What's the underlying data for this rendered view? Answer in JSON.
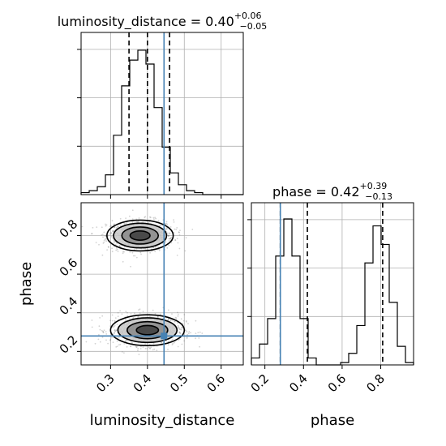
{
  "chart_data": [
    {
      "type": "histogram",
      "panel": "luminosity_distance-marginal",
      "title": "luminosity_distance = 0.40",
      "title_sup": "+0.06",
      "title_sub": "−0.05",
      "x_range": [
        0.22,
        0.66
      ],
      "bin_edges": [
        0.22,
        0.242,
        0.264,
        0.286,
        0.308,
        0.33,
        0.352,
        0.374,
        0.396,
        0.418,
        0.44,
        0.462,
        0.484,
        0.506,
        0.528,
        0.55,
        0.572,
        0.594,
        0.616,
        0.638,
        0.66
      ],
      "counts": [
        1,
        2,
        4,
        10,
        30,
        55,
        68,
        73,
        66,
        44,
        24,
        11,
        5,
        2,
        1,
        0,
        0,
        0,
        0,
        0
      ],
      "ymax": 82,
      "quantiles": [
        0.35,
        0.4,
        0.46
      ],
      "truth": 0.445
    },
    {
      "type": "histogram",
      "panel": "phase-marginal",
      "title": "phase = 0.42",
      "title_sup": "+0.39",
      "title_sub": "−0.13",
      "x_range": [
        0.13,
        0.97
      ],
      "bin_edges": [
        0.13,
        0.172,
        0.214,
        0.256,
        0.298,
        0.34,
        0.382,
        0.424,
        0.466,
        0.508,
        0.55,
        0.592,
        0.634,
        0.676,
        0.718,
        0.76,
        0.802,
        0.844,
        0.886,
        0.928,
        0.97
      ],
      "counts": [
        3,
        9,
        20,
        47,
        63,
        47,
        20,
        3,
        0,
        0,
        0,
        1,
        5,
        17,
        44,
        60,
        52,
        27,
        8,
        1
      ],
      "ymax": 70,
      "quantiles": [
        0.28,
        0.42,
        0.81
      ],
      "truth": 0.28,
      "xticks": [
        "0.2",
        "0.4",
        "0.6",
        "0.8"
      ],
      "xlabel": "phase"
    },
    {
      "type": "scatter",
      "panel": "luminosity_distance-vs-phase",
      "x_range": [
        0.22,
        0.66
      ],
      "y_range": [
        0.13,
        0.97
      ],
      "xticks": [
        "0.3",
        "0.4",
        "0.5",
        "0.6"
      ],
      "yticks": [
        "0.2",
        "0.4",
        "0.6",
        "0.8"
      ],
      "xlabel": "luminosity_distance",
      "ylabel": "phase",
      "modes": [
        {
          "x": 0.38,
          "y": 0.8,
          "sx": 0.045,
          "sy": 0.04
        },
        {
          "x": 0.4,
          "y": 0.31,
          "sx": 0.05,
          "sy": 0.04
        }
      ],
      "contour_levels": [
        0.6,
        1.1,
        1.6,
        2.0
      ],
      "truth": {
        "x": 0.445,
        "y": 0.28
      },
      "point_color": "#606060",
      "truth_color": "#4682b4"
    }
  ]
}
